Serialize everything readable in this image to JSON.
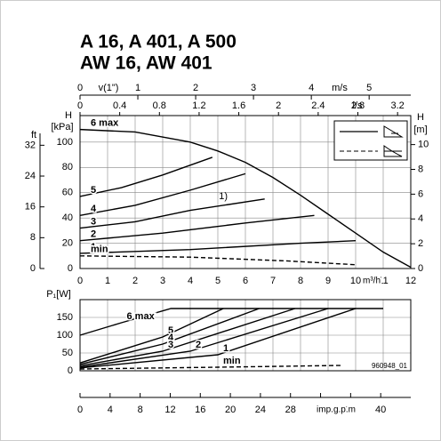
{
  "chart_data": [
    {
      "type": "line",
      "title": "A 16, A 401, A 500",
      "subtitle": "AW 16, AW 401",
      "xlabel": "m³/h",
      "xlim": [
        0,
        12
      ],
      "xticks": [
        0,
        1,
        2,
        3,
        4,
        5,
        6,
        7,
        8,
        9,
        10,
        11,
        12
      ],
      "ylabel": "H",
      "yunit": "[kPa]",
      "ylim": [
        0,
        121
      ],
      "yticks": [
        0,
        20,
        40,
        60,
        80,
        100
      ],
      "ft_axis": {
        "label": "ft",
        "ylim": [
          0,
          39.7
        ],
        "yticks": [
          0,
          8,
          16,
          24,
          32
        ]
      },
      "y2label": "H",
      "y2unit": "[m]",
      "y2lim": [
        0,
        12.34
      ],
      "y2ticks": [
        0,
        2,
        4,
        6,
        8,
        10
      ],
      "velocity_axis": {
        "label": "v(1\")",
        "unit": "m/s",
        "xlim": [
          0,
          5.72
        ],
        "xticks": [
          0,
          1,
          2,
          3,
          4,
          5
        ]
      },
      "flow_axis": {
        "unit": "l/s",
        "xlim": [
          0,
          3.333
        ],
        "xticks": [
          0,
          0.4,
          0.8,
          1.2,
          1.6,
          2,
          2.4,
          2.8,
          3.2
        ]
      },
      "grid": true,
      "series": [
        {
          "name": "6 max",
          "color": "#000000",
          "dashed": false,
          "x": [
            0,
            2,
            4,
            5,
            6,
            7,
            8,
            9,
            10,
            11,
            12
          ],
          "values": [
            110,
            108,
            100,
            93,
            84,
            72,
            58,
            43,
            28,
            13,
            1
          ]
        },
        {
          "name": "5",
          "color": "#000000",
          "dashed": false,
          "x": [
            0,
            1.5,
            3,
            4.8
          ],
          "values": [
            57,
            64,
            74,
            88
          ]
        },
        {
          "name": "4",
          "color": "#000000",
          "dashed": false,
          "x": [
            0,
            2,
            4,
            6
          ],
          "values": [
            42,
            50,
            62,
            75
          ]
        },
        {
          "name": "3",
          "color": "#000000",
          "dashed": false,
          "x": [
            0,
            2,
            4,
            6.7
          ],
          "values": [
            32,
            37,
            46,
            55
          ]
        },
        {
          "name": "2",
          "color": "#000000",
          "dashed": false,
          "x": [
            0,
            3,
            6,
            8.5
          ],
          "values": [
            22,
            28,
            36,
            42
          ]
        },
        {
          "name": "1",
          "color": "#000000",
          "dashed": false,
          "x": [
            0,
            4,
            8,
            10
          ],
          "values": [
            12,
            15,
            20,
            22
          ]
        },
        {
          "name": "min",
          "color": "#000000",
          "dashed": true,
          "x": [
            0,
            4,
            7.5,
            10
          ],
          "values": [
            10,
            9,
            6,
            3
          ]
        }
      ],
      "annotations": [
        {
          "text": "1)",
          "x": 5.2,
          "y": 57
        }
      ]
    },
    {
      "type": "line",
      "ylabel": "P₁[W]",
      "ylim": [
        0,
        200
      ],
      "yticks": [
        0,
        50,
        100,
        150
      ],
      "xlim": [
        0,
        12
      ],
      "xticks": [
        0,
        1,
        2,
        3,
        4,
        5,
        6,
        7,
        8,
        9,
        10,
        11,
        12
      ],
      "gpm_axis": {
        "label": "imp.g.p.m",
        "xlim": [
          0,
          44
        ],
        "xticks": [
          0,
          4,
          8,
          12,
          16,
          20,
          24,
          28,
          32,
          36,
          40
        ]
      },
      "grid": true,
      "code": "960948_01",
      "series": [
        {
          "name": "6 max",
          "color": "#000000",
          "dashed": false,
          "x": [
            0,
            1.5,
            3.3,
            11
          ],
          "values": [
            100,
            135,
            175,
            175
          ]
        },
        {
          "name": "5",
          "color": "#000000",
          "dashed": false,
          "x": [
            0,
            3,
            5.2
          ],
          "values": [
            22,
            95,
            175
          ]
        },
        {
          "name": "4",
          "color": "#000000",
          "dashed": false,
          "x": [
            0,
            3,
            6.5
          ],
          "values": [
            18,
            75,
            175
          ]
        },
        {
          "name": "3",
          "color": "#000000",
          "dashed": false,
          "x": [
            0,
            3,
            7.8
          ],
          "values": [
            14,
            55,
            175
          ]
        },
        {
          "name": "2",
          "color": "#000000",
          "dashed": false,
          "x": [
            0,
            4,
            9
          ],
          "values": [
            10,
            55,
            175
          ]
        },
        {
          "name": "1",
          "color": "#000000",
          "dashed": false,
          "x": [
            0,
            5,
            10
          ],
          "values": [
            8,
            45,
            175
          ]
        },
        {
          "name": "min",
          "color": "#000000",
          "dashed": true,
          "x": [
            0,
            5,
            9.5
          ],
          "values": [
            5,
            10,
            15
          ]
        }
      ]
    }
  ]
}
